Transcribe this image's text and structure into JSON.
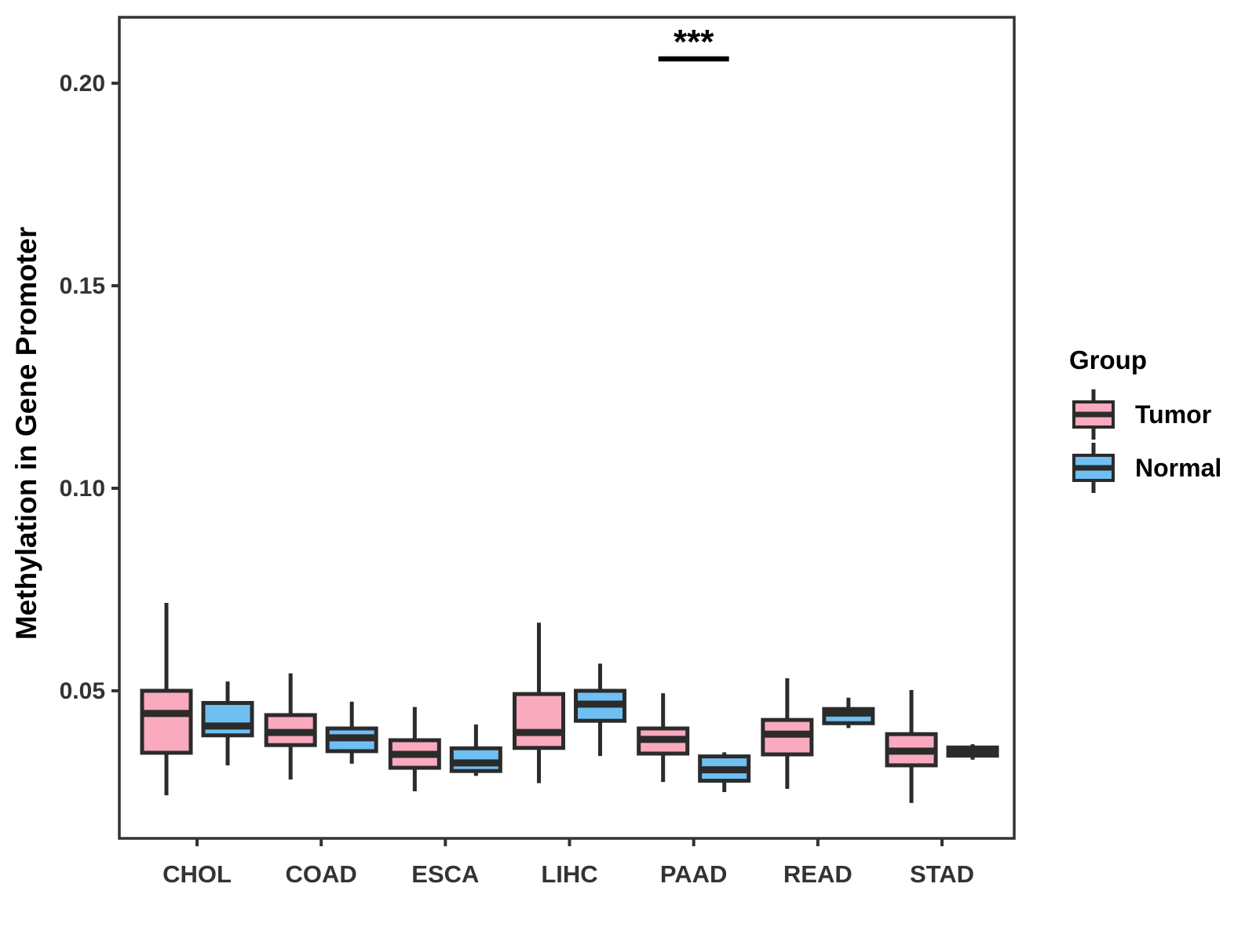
{
  "legend": {
    "title": "Group",
    "items": [
      {
        "label": "Tumor"
      },
      {
        "label": "Normal"
      }
    ]
  },
  "chart_data": {
    "type": "boxplot",
    "title": "",
    "xlabel": "",
    "ylabel": "Methylation in Gene Promoter",
    "categories": [
      "CHOL",
      "COAD",
      "ESCA",
      "LIHC",
      "PAAD",
      "READ",
      "STAD"
    ],
    "ylim": [
      0.013,
      0.217
    ],
    "yticks": {
      "values": [
        0.05,
        0.1,
        0.15,
        0.2
      ],
      "labels": [
        "0.05",
        "0.10",
        "0.15",
        "0.20"
      ]
    },
    "grid": false,
    "legend_position": "right",
    "legend_title": "Group",
    "colors": {
      "tumor": "#F9AABE",
      "normal": "#6FBFF3",
      "stroke": "#2B2B2B",
      "axis_text": "#333333",
      "axis_title": "#000000"
    },
    "series": [
      {
        "name": "Tumor",
        "color_key": "tumor",
        "boxes": [
          {
            "category": "CHOL",
            "low": 0.0242,
            "q1": 0.0347,
            "median": 0.0444,
            "q3": 0.05,
            "high": 0.0717
          },
          {
            "category": "COAD",
            "low": 0.0281,
            "q1": 0.0366,
            "median": 0.0397,
            "q3": 0.044,
            "high": 0.0543
          },
          {
            "category": "ESCA",
            "low": 0.0252,
            "q1": 0.031,
            "median": 0.0343,
            "q3": 0.0378,
            "high": 0.046
          },
          {
            "category": "LIHC",
            "low": 0.0272,
            "q1": 0.0359,
            "median": 0.0397,
            "q3": 0.0492,
            "high": 0.0668
          },
          {
            "category": "PAAD",
            "low": 0.0275,
            "q1": 0.0345,
            "median": 0.038,
            "q3": 0.0407,
            "high": 0.0494
          },
          {
            "category": "READ",
            "low": 0.0258,
            "q1": 0.0343,
            "median": 0.0393,
            "q3": 0.0428,
            "high": 0.0531
          },
          {
            "category": "STAD",
            "low": 0.0223,
            "q1": 0.0316,
            "median": 0.0351,
            "q3": 0.0393,
            "high": 0.0502
          }
        ]
      },
      {
        "name": "Normal",
        "color_key": "normal",
        "boxes": [
          {
            "category": "CHOL",
            "low": 0.0316,
            "q1": 0.039,
            "median": 0.0413,
            "q3": 0.047,
            "high": 0.0523
          },
          {
            "category": "COAD",
            "low": 0.032,
            "q1": 0.0351,
            "median": 0.0384,
            "q3": 0.0407,
            "high": 0.0473
          },
          {
            "category": "ESCA",
            "low": 0.029,
            "q1": 0.0302,
            "median": 0.0322,
            "q3": 0.0358,
            "high": 0.0417
          },
          {
            "category": "LIHC",
            "low": 0.0339,
            "q1": 0.0426,
            "median": 0.0467,
            "q3": 0.05,
            "high": 0.0567
          },
          {
            "category": "PAAD",
            "low": 0.025,
            "q1": 0.0278,
            "median": 0.0305,
            "q3": 0.0338,
            "high": 0.0348
          },
          {
            "category": "READ",
            "low": 0.0408,
            "q1": 0.042,
            "median": 0.0445,
            "q3": 0.0455,
            "high": 0.0483
          },
          {
            "category": "STAD",
            "low": 0.033,
            "q1": 0.034,
            "median": 0.035,
            "q3": 0.036,
            "high": 0.0368
          }
        ]
      }
    ],
    "annotation": {
      "text": "***",
      "category": "PAAD",
      "bar_y": 0.206
    }
  }
}
